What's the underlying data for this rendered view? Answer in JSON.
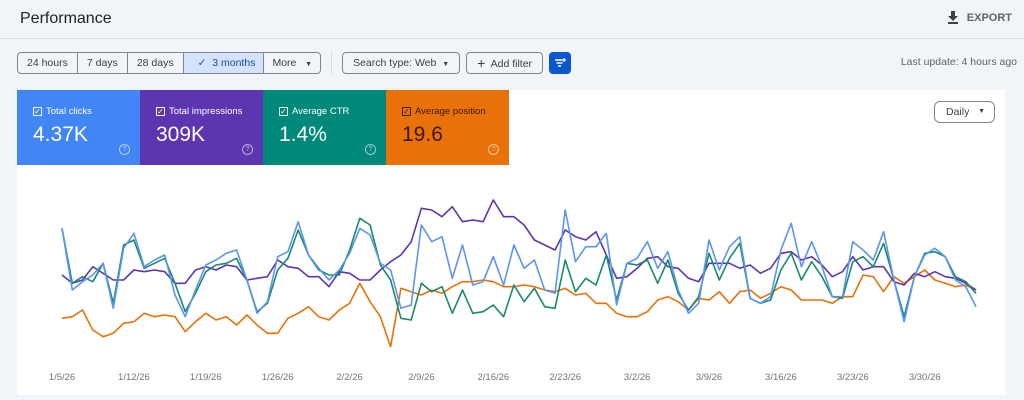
{
  "header": {
    "title": "Performance",
    "export_label": "EXPORT",
    "export_icon": "download-icon"
  },
  "toolbar": {
    "ranges": [
      {
        "label": "24 hours"
      },
      {
        "label": "7 days"
      },
      {
        "label": "28 days"
      },
      {
        "label": "3 months",
        "selected": true
      },
      {
        "label": "More"
      }
    ],
    "check_icon": "✓",
    "search_type": "Search type: Web",
    "add_filter": "Add filter",
    "last_update": "Last update: 4 hours ago"
  },
  "metrics": [
    {
      "label": "Total clicks",
      "value": "4.37K",
      "color": "#4285f4",
      "checked": true
    },
    {
      "label": "Total impressions",
      "value": "309K",
      "color": "#5e35b1",
      "checked": true
    },
    {
      "label": "Average CTR",
      "value": "1.4%",
      "color": "#00897b",
      "checked": true
    },
    {
      "label": "Average position",
      "value": "19.6",
      "color": "#e8710a",
      "checked": true
    }
  ],
  "granularity": "Daily",
  "chart_data": {
    "type": "line",
    "x_start": "1/5/26",
    "x_end": "4/4/26",
    "tick_labels": [
      "1/5/26",
      "1/12/26",
      "1/19/26",
      "1/26/26",
      "2/2/26",
      "2/9/26",
      "2/16/26",
      "2/23/26",
      "3/2/26",
      "3/9/26",
      "3/16/26",
      "3/23/26",
      "3/30/26"
    ],
    "y_scale": "relative 0-100 (no axis shown)",
    "grid": false,
    "series": [
      {
        "name": "Total clicks",
        "color": "#5b95f0",
        "values": [
          73,
          36,
          41,
          45,
          52,
          25,
          61,
          70,
          50,
          54,
          57,
          33,
          20,
          36,
          51,
          54,
          58,
          60,
          42,
          22,
          29,
          56,
          59,
          77,
          57,
          49,
          42,
          48,
          58,
          73,
          69,
          52,
          48,
          25,
          27,
          75,
          65,
          68,
          43,
          63,
          39,
          41,
          56,
          39,
          63,
          49,
          54,
          36,
          34,
          84,
          53,
          62,
          62,
          70,
          27,
          52,
          55,
          65,
          49,
          59,
          36,
          22,
          28,
          66,
          48,
          62,
          68,
          31,
          28,
          32,
          60,
          76,
          50,
          65,
          50,
          32,
          32,
          65,
          60,
          54,
          71,
          42,
          17,
          44,
          57,
          61,
          56,
          42,
          38,
          26
        ]
      },
      {
        "name": "Total impressions",
        "color": "#5e35b1",
        "values": [
          45,
          40,
          42,
          50,
          46,
          42,
          42,
          48,
          47,
          48,
          47,
          40,
          40,
          48,
          50,
          48,
          51,
          50,
          42,
          43,
          44,
          54,
          50,
          49,
          44,
          44,
          38,
          47,
          46,
          42,
          42,
          48,
          53,
          57,
          65,
          85,
          84,
          80,
          86,
          77,
          78,
          77,
          90,
          80,
          80,
          75,
          66,
          63,
          60,
          72,
          68,
          66,
          71,
          57,
          43,
          44,
          49,
          55,
          56,
          50,
          49,
          43,
          41,
          52,
          52,
          52,
          49,
          51,
          46,
          49,
          58,
          59,
          54,
          56,
          51,
          44,
          47,
          56,
          48,
          50,
          50,
          41,
          39,
          46,
          44,
          47,
          44,
          43,
          40,
          36
        ]
      },
      {
        "name": "Average CTR",
        "color": "#1a8a6e",
        "values": [
          73,
          40,
          44,
          41,
          52,
          28,
          63,
          66,
          49,
          52,
          55,
          40,
          23,
          34,
          47,
          51,
          52,
          55,
          42,
          23,
          28,
          48,
          55,
          72,
          57,
          48,
          45,
          45,
          60,
          79,
          75,
          51,
          42,
          19,
          18,
          40,
          35,
          38,
          22,
          36,
          22,
          23,
          27,
          20,
          39,
          29,
          37,
          26,
          25,
          54,
          35,
          43,
          39,
          57,
          30,
          52,
          51,
          54,
          40,
          54,
          34,
          24,
          32,
          58,
          42,
          55,
          64,
          31,
          28,
          30,
          48,
          58,
          42,
          53,
          44,
          32,
          31,
          53,
          56,
          50,
          64,
          42,
          20,
          44,
          58,
          59,
          56,
          44,
          41,
          34
        ]
      },
      {
        "name": "Average position",
        "color": "#e8710a",
        "values": [
          19,
          20,
          24,
          12,
          8,
          10,
          16,
          17,
          22,
          20,
          21,
          20,
          11,
          17,
          22,
          18,
          20,
          15,
          21,
          15,
          10,
          10,
          19,
          22,
          26,
          20,
          18,
          24,
          28,
          40,
          29,
          20,
          2,
          37,
          35,
          33,
          36,
          34,
          38,
          41,
          41,
          42,
          41,
          38,
          38,
          39,
          38,
          36,
          35,
          37,
          33,
          34,
          28,
          28,
          22,
          20,
          20,
          23,
          30,
          32,
          29,
          24,
          31,
          30,
          35,
          28,
          35,
          36,
          31,
          34,
          38,
          36,
          30,
          30,
          30,
          28,
          32,
          32,
          45,
          44,
          35,
          44,
          40,
          44,
          48,
          42,
          40,
          38,
          39,
          36
        ]
      }
    ]
  }
}
